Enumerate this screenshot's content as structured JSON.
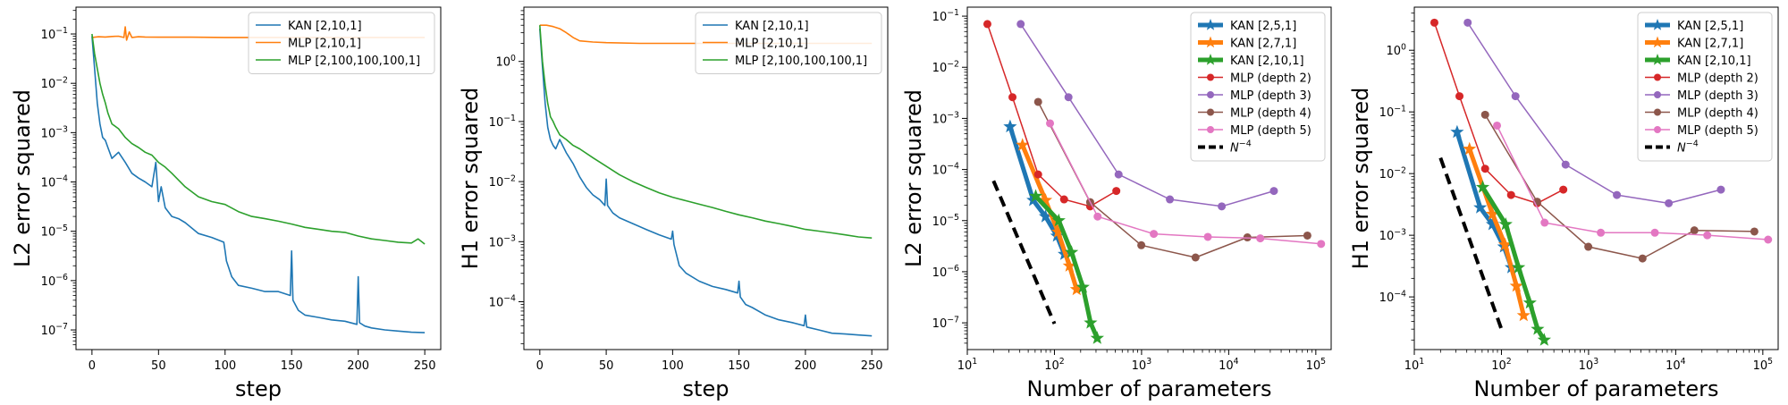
{
  "chart_data": [
    {
      "type": "line",
      "xlabel": "step",
      "ylabel": "L2 error squared",
      "xscale": "linear",
      "yscale": "log",
      "xlim": [
        -12,
        262
      ],
      "ylim": [
        4e-08,
        0.35
      ],
      "xticks": [
        0,
        50,
        100,
        150,
        200,
        250
      ],
      "yticks": [
        {
          "value": 1e-07,
          "label": "10^-7"
        },
        {
          "value": 1e-06,
          "label": "10^-6"
        },
        {
          "value": 1e-05,
          "label": "10^-5"
        },
        {
          "value": 0.0001,
          "label": "10^-4"
        },
        {
          "value": 0.001,
          "label": "10^-3"
        },
        {
          "value": 0.01,
          "label": "10^-2"
        },
        {
          "value": 0.1,
          "label": "10^-1"
        }
      ],
      "legend_position": "top-right",
      "series": [
        {
          "name": "KAN [2,10,1]",
          "color": "#1f77b4",
          "x": [
            0,
            2,
            4,
            6,
            8,
            10,
            12,
            15,
            20,
            25,
            30,
            35,
            40,
            45,
            48,
            50,
            52,
            55,
            60,
            65,
            70,
            80,
            90,
            99,
            100,
            101,
            105,
            110,
            120,
            130,
            140,
            149,
            150,
            151,
            155,
            160,
            170,
            180,
            190,
            199,
            200,
            201,
            205,
            210,
            220,
            230,
            240,
            250
          ],
          "y": [
            0.09,
            0.02,
            0.004,
            0.0015,
            0.0008,
            0.0007,
            0.0005,
            0.0003,
            0.0004,
            0.00025,
            0.00015,
            0.00012,
            0.0001,
            8e-05,
            0.00025,
            4e-05,
            8e-05,
            3e-05,
            2e-05,
            1.8e-05,
            1.5e-05,
            9e-06,
            7.5e-06,
            6e-06,
            4e-06,
            2.5e-06,
            1.2e-06,
            8e-07,
            7e-07,
            6e-07,
            6e-07,
            5e-07,
            4e-06,
            4e-07,
            2.5e-07,
            2e-07,
            1.8e-07,
            1.6e-07,
            1.5e-07,
            1.3e-07,
            1.2e-06,
            1.4e-07,
            1.2e-07,
            1.1e-07,
            1e-07,
            9.5e-08,
            9e-08,
            8.8e-08
          ]
        },
        {
          "name": "MLP [2,10,1]",
          "color": "#ff7f0e",
          "x": [
            0,
            5,
            10,
            15,
            20,
            24,
            25,
            26,
            28,
            30,
            35,
            40,
            50,
            75,
            100,
            150,
            200,
            250
          ],
          "y": [
            0.085,
            0.088,
            0.087,
            0.089,
            0.09,
            0.085,
            0.14,
            0.075,
            0.11,
            0.085,
            0.088,
            0.087,
            0.086,
            0.086,
            0.085,
            0.085,
            0.085,
            0.085
          ]
        },
        {
          "name": "MLP [2,100,100,100,1]",
          "color": "#2ca02c",
          "x": [
            0,
            2,
            4,
            6,
            8,
            10,
            12,
            15,
            20,
            25,
            30,
            35,
            40,
            45,
            50,
            55,
            60,
            70,
            80,
            90,
            100,
            110,
            120,
            130,
            140,
            150,
            160,
            170,
            180,
            190,
            200,
            210,
            220,
            230,
            240,
            245,
            250
          ],
          "y": [
            0.1,
            0.04,
            0.02,
            0.01,
            0.006,
            0.004,
            0.0025,
            0.0015,
            0.0012,
            0.0008,
            0.0006,
            0.0005,
            0.0004,
            0.00035,
            0.00025,
            0.0002,
            0.00015,
            8e-05,
            5e-05,
            4e-05,
            3.5e-05,
            2.5e-05,
            2e-05,
            1.8e-05,
            1.6e-05,
            1.4e-05,
            1.2e-05,
            1.1e-05,
            1e-05,
            9.5e-06,
            8e-06,
            7e-06,
            6.5e-06,
            6e-06,
            5.8e-06,
            7e-06,
            5.5e-06
          ]
        }
      ]
    },
    {
      "type": "line",
      "xlabel": "step",
      "ylabel": "H1 error squared",
      "xscale": "linear",
      "yscale": "log",
      "xlim": [
        -12,
        262
      ],
      "ylim": [
        1.6e-05,
        8
      ],
      "xticks": [
        0,
        50,
        100,
        150,
        200,
        250
      ],
      "yticks": [
        {
          "value": 0.0001,
          "label": "10^-4"
        },
        {
          "value": 0.001,
          "label": "10^-3"
        },
        {
          "value": 0.01,
          "label": "10^-2"
        },
        {
          "value": 0.1,
          "label": "10^-1"
        },
        {
          "value": 1,
          "label": "10^0"
        }
      ],
      "legend_position": "top-right",
      "series": [
        {
          "name": "KAN [2,10,1]",
          "color": "#1f77b4",
          "x": [
            0,
            2,
            4,
            6,
            8,
            10,
            12,
            15,
            20,
            25,
            30,
            35,
            40,
            45,
            49,
            50,
            51,
            55,
            60,
            70,
            80,
            90,
            99,
            100,
            101,
            105,
            110,
            120,
            130,
            140,
            149,
            150,
            151,
            155,
            160,
            170,
            180,
            190,
            199,
            200,
            201,
            210,
            220,
            230,
            240,
            250
          ],
          "y": [
            3.5,
            0.8,
            0.2,
            0.08,
            0.05,
            0.04,
            0.035,
            0.05,
            0.03,
            0.02,
            0.012,
            0.008,
            0.006,
            0.005,
            0.004,
            0.011,
            0.004,
            0.003,
            0.0025,
            0.002,
            0.0016,
            0.0013,
            0.0011,
            0.0015,
            0.0009,
            0.0004,
            0.0003,
            0.00022,
            0.00018,
            0.00016,
            0.00014,
            0.00022,
            0.00012,
            9e-05,
            8e-05,
            6e-05,
            5e-05,
            4.5e-05,
            4e-05,
            6e-05,
            3.8e-05,
            3.4e-05,
            3e-05,
            2.9e-05,
            2.8e-05,
            2.7e-05
          ]
        },
        {
          "name": "MLP [2,10,1]",
          "color": "#ff7f0e",
          "x": [
            0,
            5,
            10,
            15,
            20,
            25,
            30,
            40,
            50,
            75,
            100,
            150,
            200,
            250
          ],
          "y": [
            4.0,
            4.0,
            3.8,
            3.5,
            3.0,
            2.5,
            2.2,
            2.1,
            2.05,
            2.0,
            2.0,
            2.0,
            2.0,
            2.0
          ]
        },
        {
          "name": "MLP [2,100,100,100,1]",
          "color": "#2ca02c",
          "x": [
            0,
            2,
            4,
            6,
            8,
            10,
            12,
            15,
            20,
            25,
            30,
            40,
            50,
            60,
            70,
            80,
            90,
            100,
            110,
            120,
            130,
            140,
            150,
            160,
            170,
            180,
            190,
            200,
            210,
            220,
            230,
            240,
            250
          ],
          "y": [
            4.0,
            1.0,
            0.4,
            0.2,
            0.12,
            0.1,
            0.08,
            0.06,
            0.05,
            0.04,
            0.035,
            0.025,
            0.018,
            0.013,
            0.01,
            0.008,
            0.0065,
            0.0055,
            0.0048,
            0.0042,
            0.0037,
            0.0032,
            0.0028,
            0.0025,
            0.0022,
            0.002,
            0.0018,
            0.0016,
            0.0015,
            0.0014,
            0.0013,
            0.0012,
            0.00115
          ]
        }
      ]
    },
    {
      "type": "line",
      "xlabel": "Number of parameters",
      "ylabel": "L2 error squared",
      "xscale": "log",
      "yscale": "log",
      "xlim": [
        10,
        150000
      ],
      "ylim": [
        3e-08,
        0.15
      ],
      "xticks": [
        {
          "value": 10,
          "label": "10^1"
        },
        {
          "value": 100,
          "label": "10^2"
        },
        {
          "value": 1000,
          "label": "10^3"
        },
        {
          "value": 10000,
          "label": "10^4"
        },
        {
          "value": 100000,
          "label": "10^5"
        }
      ],
      "yticks": [
        {
          "value": 1e-07,
          "label": "10^-7"
        },
        {
          "value": 1e-06,
          "label": "10^-6"
        },
        {
          "value": 1e-05,
          "label": "10^-5"
        },
        {
          "value": 0.0001,
          "label": "10^-4"
        },
        {
          "value": 0.001,
          "label": "10^-3"
        },
        {
          "value": 0.01,
          "label": "10^-2"
        },
        {
          "value": 0.1,
          "label": "10^-1"
        }
      ],
      "legend_position": "top-right",
      "series": [
        {
          "name": "KAN [2,5,1]",
          "color": "#1f77b4",
          "marker": "star",
          "width": 5,
          "x": [
            31,
            57,
            79,
            107,
            130
          ],
          "y": [
            0.00069,
            2.5e-05,
            1.2e-05,
            5e-06,
            2.2e-06
          ]
        },
        {
          "name": "KAN [2,7,1]",
          "color": "#ff7f0e",
          "marker": "star",
          "width": 5,
          "x": [
            43,
            79,
            110,
            149,
            180
          ],
          "y": [
            0.0003,
            2.5e-05,
            6e-06,
            1.3e-06,
            4.5e-07
          ]
        },
        {
          "name": "KAN [2,10,1]",
          "color": "#2ca02c",
          "marker": "star",
          "width": 5,
          "x": [
            61,
            112,
            157,
            212,
            260,
            310
          ],
          "y": [
            3e-05,
            1e-05,
            2.4e-06,
            5e-07,
            1e-07,
            5e-08
          ]
        },
        {
          "name": "MLP (depth 2)",
          "color": "#d62728",
          "marker": "circle",
          "width": 1.5,
          "x": [
            17,
            33,
            65,
            129,
            257,
            513
          ],
          "y": [
            0.07,
            0.0026,
            8e-05,
            2.6e-05,
            1.9e-05,
            3.8e-05
          ]
        },
        {
          "name": "MLP (depth 3)",
          "color": "#9467bd",
          "marker": "circle",
          "width": 1.5,
          "x": [
            41,
            145,
            545,
            2113,
            8321,
            33025
          ],
          "y": [
            0.07,
            0.0026,
            8e-05,
            2.6e-05,
            1.9e-05,
            3.8e-05
          ]
        },
        {
          "name": "MLP (depth 4)",
          "color": "#8c564b",
          "marker": "circle",
          "width": 1.5,
          "x": [
            65,
            257,
            993,
            4161,
            16385,
            80000
          ],
          "y": [
            0.0021,
            2.3e-05,
            3.3e-06,
            1.9e-06,
            4.7e-06,
            5.1e-06
          ]
        },
        {
          "name": "MLP (depth 5)",
          "color": "#e377c2",
          "marker": "circle",
          "width": 1.5,
          "x": [
            89,
            313,
            1381,
            5761,
            23041,
            115000
          ],
          "y": [
            0.0008,
            1.2e-05,
            5.5e-06,
            4.8e-06,
            4.5e-06,
            3.5e-06
          ]
        },
        {
          "name": "N^{-4}",
          "color": "#000000",
          "dash": true,
          "width": 4,
          "x": [
            20,
            100
          ],
          "y": [
            6e-05,
            9.6e-08
          ]
        }
      ]
    },
    {
      "type": "line",
      "xlabel": "Number of parameters",
      "ylabel": "H1 error squared",
      "xscale": "log",
      "yscale": "log",
      "xlim": [
        10,
        150000
      ],
      "ylim": [
        1.4e-05,
        5
      ],
      "xticks": [
        {
          "value": 10,
          "label": "10^1"
        },
        {
          "value": 100,
          "label": "10^2"
        },
        {
          "value": 1000,
          "label": "10^3"
        },
        {
          "value": 10000,
          "label": "10^4"
        },
        {
          "value": 100000,
          "label": "10^5"
        }
      ],
      "yticks": [
        {
          "value": 0.0001,
          "label": "10^-4"
        },
        {
          "value": 0.001,
          "label": "10^-3"
        },
        {
          "value": 0.01,
          "label": "10^-2"
        },
        {
          "value": 0.1,
          "label": "10^-1"
        },
        {
          "value": 1,
          "label": "10^0"
        }
      ],
      "legend_position": "top-right",
      "series": [
        {
          "name": "KAN [2,5,1]",
          "color": "#1f77b4",
          "marker": "star",
          "width": 5,
          "x": [
            31,
            57,
            79,
            107,
            130
          ],
          "y": [
            0.047,
            0.0028,
            0.0015,
            0.00065,
            0.0003
          ]
        },
        {
          "name": "KAN [2,7,1]",
          "color": "#ff7f0e",
          "marker": "star",
          "width": 5,
          "x": [
            43,
            79,
            110,
            149,
            180
          ],
          "y": [
            0.025,
            0.0022,
            0.0007,
            0.00015,
            5e-05
          ]
        },
        {
          "name": "KAN [2,10,1]",
          "color": "#2ca02c",
          "marker": "star",
          "width": 5,
          "x": [
            61,
            112,
            157,
            212,
            260,
            310
          ],
          "y": [
            0.006,
            0.0015,
            0.0003,
            8e-05,
            3e-05,
            2e-05
          ]
        },
        {
          "name": "MLP (depth 2)",
          "color": "#d62728",
          "marker": "circle",
          "width": 1.5,
          "x": [
            17,
            33,
            65,
            129,
            257,
            513
          ],
          "y": [
            2.8,
            0.18,
            0.012,
            0.0045,
            0.0033,
            0.0055
          ]
        },
        {
          "name": "MLP (depth 3)",
          "color": "#9467bd",
          "marker": "circle",
          "width": 1.5,
          "x": [
            41,
            145,
            545,
            2113,
            8321,
            33025
          ],
          "y": [
            2.8,
            0.18,
            0.014,
            0.0045,
            0.0033,
            0.0055
          ]
        },
        {
          "name": "MLP (depth 4)",
          "color": "#8c564b",
          "marker": "circle",
          "width": 1.5,
          "x": [
            65,
            257,
            993,
            4161,
            16385,
            80000
          ],
          "y": [
            0.09,
            0.0035,
            0.00065,
            0.00042,
            0.0012,
            0.00115
          ]
        },
        {
          "name": "MLP (depth 5)",
          "color": "#e377c2",
          "marker": "circle",
          "width": 1.5,
          "x": [
            89,
            313,
            1381,
            5761,
            23041,
            115000
          ],
          "y": [
            0.06,
            0.0016,
            0.0011,
            0.0011,
            0.001,
            0.00085
          ]
        },
        {
          "name": "N^{-4}",
          "color": "#000000",
          "dash": true,
          "width": 4,
          "x": [
            20,
            100
          ],
          "y": [
            0.018,
            3e-05
          ]
        }
      ]
    }
  ]
}
